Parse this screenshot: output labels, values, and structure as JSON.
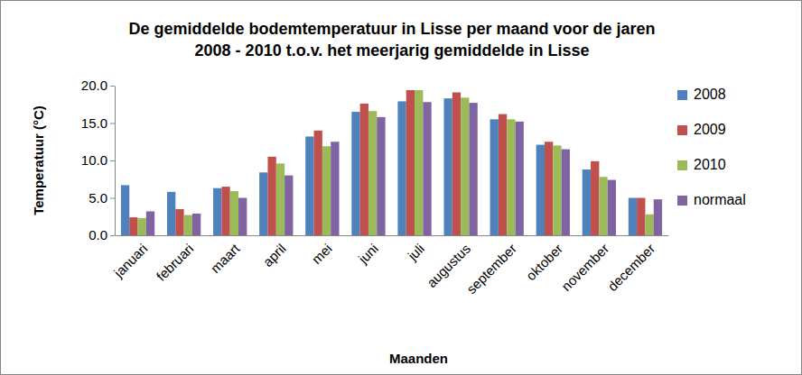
{
  "chart_data": {
    "type": "bar",
    "title": "De gemiddelde bodemtemperatuur in Lisse per maand voor de jaren\n2008 - 2010 t.o.v. het meerjarig gemiddelde in Lisse",
    "x_label": "Maanden",
    "y_label": "Temperatuur (°C)",
    "categories": [
      "januari",
      "februari",
      "maart",
      "april",
      "mei",
      "juni",
      "juli",
      "augustus",
      "september",
      "oktober",
      "november",
      "december"
    ],
    "series": [
      {
        "name": "2008",
        "color": "#4f81bd",
        "values": [
          6.7,
          5.8,
          6.3,
          8.4,
          13.2,
          16.5,
          17.9,
          18.3,
          15.5,
          12.1,
          8.8,
          5.0
        ]
      },
      {
        "name": "2009",
        "color": "#c0504d",
        "values": [
          2.4,
          3.5,
          6.5,
          10.5,
          14.0,
          17.6,
          19.4,
          19.1,
          16.2,
          12.5,
          9.9,
          5.0
        ]
      },
      {
        "name": "2010",
        "color": "#9bbb59",
        "values": [
          2.3,
          2.7,
          5.9,
          9.6,
          11.9,
          16.6,
          19.4,
          18.4,
          15.5,
          12.0,
          7.8,
          2.8
        ]
      },
      {
        "name": "normaal",
        "color": "#8064a2",
        "values": [
          3.2,
          2.9,
          5.0,
          8.0,
          12.5,
          15.8,
          17.8,
          17.7,
          15.2,
          11.5,
          7.4,
          4.8
        ]
      }
    ],
    "ylim": [
      0,
      20
    ],
    "yticks": [
      {
        "value": 0,
        "label": "0.0"
      },
      {
        "value": 5,
        "label": "5.0"
      },
      {
        "value": 10,
        "label": "10.0"
      },
      {
        "value": 15,
        "label": "15.0"
      },
      {
        "value": 20,
        "label": "20.0"
      }
    ],
    "grid": false,
    "legend": "right"
  }
}
